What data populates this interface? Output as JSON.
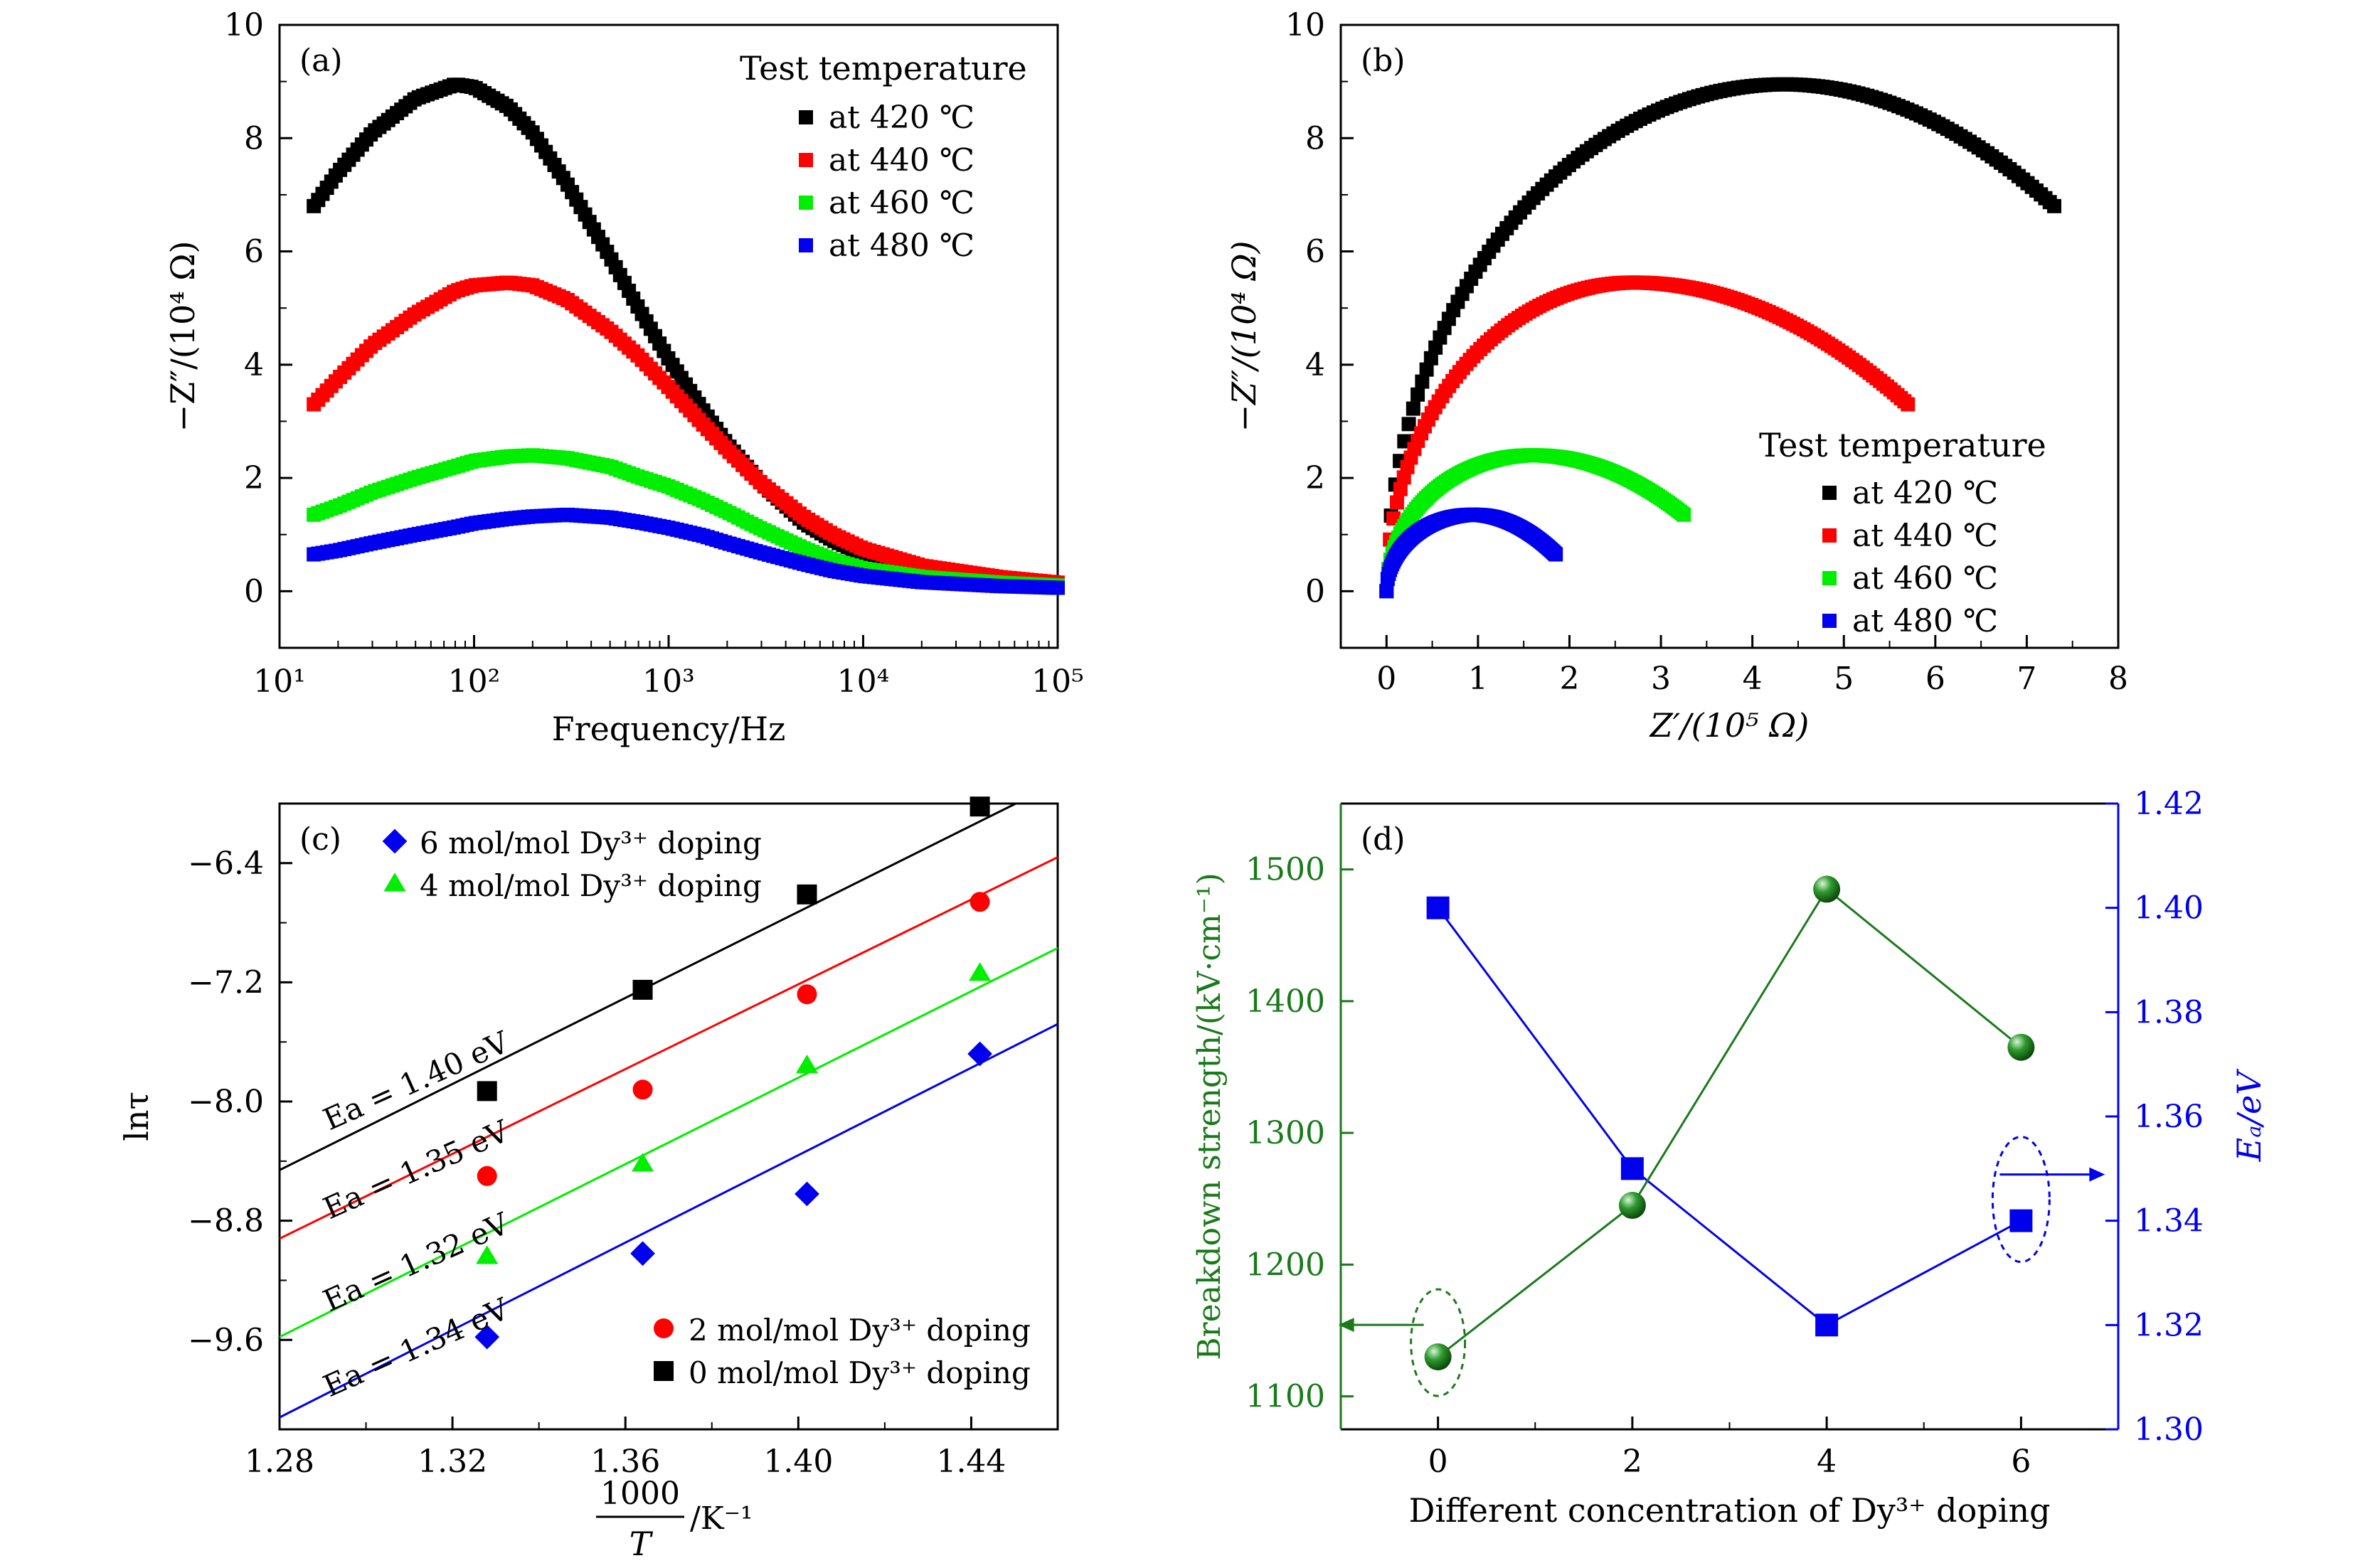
{
  "chart_data": [
    {
      "panel": "(a)",
      "type": "line",
      "xlabel": "Frequency/Hz",
      "ylabel": "−Z″/(10⁴ Ω)",
      "xscale": "log",
      "xlim": [
        10,
        100000
      ],
      "ylim": [
        -1,
        10
      ],
      "xticks": [
        10,
        100,
        1000,
        10000,
        100000
      ],
      "xtick_labels": [
        "10¹",
        "10²",
        "10³",
        "10⁴",
        "10⁵"
      ],
      "yticks": [
        0,
        2,
        4,
        6,
        8,
        10
      ],
      "legend_title": "Test temperature",
      "legend_position": "top-right",
      "series": [
        {
          "name": "at 420 ℃",
          "color": "#000000",
          "x": [
            15,
            20,
            30,
            50,
            80,
            100,
            150,
            200,
            300,
            500,
            700,
            1000,
            1500,
            2000,
            3000,
            5000,
            7000,
            10000,
            20000,
            50000,
            100000
          ],
          "y": [
            6.8,
            7.4,
            8.1,
            8.7,
            8.95,
            8.9,
            8.55,
            8.1,
            7.2,
            5.9,
            5.0,
            4.1,
            3.2,
            2.6,
            1.9,
            1.2,
            0.9,
            0.65,
            0.4,
            0.22,
            0.15
          ]
        },
        {
          "name": "at 440 ℃",
          "color": "#ff0000",
          "x": [
            15,
            20,
            30,
            50,
            80,
            100,
            150,
            200,
            300,
            500,
            700,
            1000,
            1500,
            2000,
            3000,
            5000,
            7000,
            10000,
            20000,
            50000,
            100000
          ],
          "y": [
            3.3,
            3.75,
            4.35,
            4.9,
            5.3,
            5.4,
            5.45,
            5.4,
            5.15,
            4.6,
            4.15,
            3.6,
            2.95,
            2.5,
            1.9,
            1.3,
            1.0,
            0.75,
            0.45,
            0.25,
            0.15
          ]
        },
        {
          "name": "at 460 ℃",
          "color": "#00ee00",
          "x": [
            15,
            20,
            30,
            50,
            80,
            100,
            150,
            200,
            300,
            500,
            700,
            1000,
            1500,
            2000,
            3000,
            5000,
            7000,
            10000,
            20000,
            50000,
            100000
          ],
          "y": [
            1.35,
            1.5,
            1.75,
            2.0,
            2.2,
            2.3,
            2.38,
            2.4,
            2.35,
            2.2,
            2.02,
            1.85,
            1.6,
            1.4,
            1.1,
            0.75,
            0.55,
            0.4,
            0.25,
            0.15,
            0.1
          ]
        },
        {
          "name": "at 480 ℃",
          "color": "#0000ee",
          "x": [
            15,
            20,
            30,
            50,
            80,
            100,
            150,
            200,
            300,
            500,
            700,
            1000,
            1500,
            2000,
            3000,
            5000,
            7000,
            10000,
            20000,
            50000,
            100000
          ],
          "y": [
            0.65,
            0.72,
            0.85,
            1.0,
            1.13,
            1.2,
            1.28,
            1.32,
            1.35,
            1.3,
            1.22,
            1.12,
            0.98,
            0.85,
            0.68,
            0.48,
            0.36,
            0.27,
            0.16,
            0.09,
            0.06
          ]
        }
      ]
    },
    {
      "panel": "(b)",
      "type": "scatter",
      "xlabel": "Z′/(10⁵ Ω)",
      "ylabel": "−Z″/(10⁴ Ω)",
      "xlim": [
        -0.5,
        8
      ],
      "ylim": [
        -1,
        10
      ],
      "xticks": [
        0,
        1,
        2,
        3,
        4,
        5,
        6,
        7,
        8
      ],
      "yticks": [
        0,
        2,
        4,
        6,
        8,
        10
      ],
      "legend_title": "Test temperature",
      "legend_position": "bottom-right",
      "series": [
        {
          "name": "at 420 ℃",
          "color": "#000000",
          "x0": 0.0,
          "x1": 7.3,
          "peak_x": 4.35,
          "peak_y": 8.95,
          "end_y": 6.8
        },
        {
          "name": "at 440 ℃",
          "color": "#ff0000",
          "x0": 0.0,
          "x1": 5.7,
          "peak_x": 2.7,
          "peak_y": 5.45,
          "end_y": 3.3
        },
        {
          "name": "at 460 ℃",
          "color": "#00ee00",
          "x0": 0.0,
          "x1": 3.25,
          "peak_x": 1.6,
          "peak_y": 2.4,
          "end_y": 1.35
        },
        {
          "name": "at 480 ℃",
          "color": "#0000ee",
          "x0": 0.0,
          "x1": 1.85,
          "peak_x": 0.95,
          "peak_y": 1.35,
          "end_y": 0.65
        }
      ]
    },
    {
      "panel": "(c)",
      "type": "scatter",
      "xlabel_num": "1000",
      "xlabel_den": "T",
      "xlabel_unit": "/K⁻¹",
      "ylabel": "lnτ",
      "xlim": [
        1.28,
        1.46
      ],
      "ylim": [
        -10.2,
        -6.0
      ],
      "xticks": [
        1.28,
        1.32,
        1.36,
        1.4,
        1.44
      ],
      "xtick_labels": [
        "1.28",
        "1.32",
        "1.36",
        "1.40",
        "1.44"
      ],
      "yticks": [
        -9.6,
        -8.8,
        -8.0,
        -7.2,
        -6.4
      ],
      "ytick_labels": [
        "−9.6",
        "−8.8",
        "−8.0",
        "−7.2",
        "−6.4"
      ],
      "legend_top": [
        "6 mol/mol Dy³⁺ doping",
        "4 mol/mol Dy³⁺ doping"
      ],
      "legend_bottom": [
        "2 mol/mol Dy³⁺ doping",
        "0 mol/mol Dy³⁺ doping"
      ],
      "series": [
        {
          "name": "0 mol/mol Dy³⁺ doping",
          "color": "#000000",
          "marker": "square",
          "x": [
            1.328,
            1.364,
            1.402,
            1.442
          ],
          "y": [
            -7.93,
            -7.25,
            -6.61,
            -6.02
          ],
          "fit": {
            "x": [
              1.28,
              1.46
            ],
            "y": [
              -8.46,
              -5.86
            ]
          },
          "ea_label": "Ea = 1.40 eV"
        },
        {
          "name": "2 mol/mol Dy³⁺ doping",
          "color": "#ff0000",
          "marker": "circle",
          "x": [
            1.328,
            1.364,
            1.402,
            1.442
          ],
          "y": [
            -8.5,
            -7.92,
            -7.28,
            -6.66
          ],
          "fit": {
            "x": [
              1.28,
              1.46
            ],
            "y": [
              -8.92,
              -6.36
            ]
          },
          "ea_label": "Ea = 1.35 eV"
        },
        {
          "name": "4 mol/mol Dy³⁺ doping",
          "color": "#00ee00",
          "marker": "triangle",
          "x": [
            1.328,
            1.364,
            1.402,
            1.442
          ],
          "y": [
            -9.04,
            -8.42,
            -7.76,
            -7.14
          ],
          "fit": {
            "x": [
              1.28,
              1.46
            ],
            "y": [
              -9.58,
              -6.97
            ]
          },
          "ea_label": "Ea = 1.32 eV"
        },
        {
          "name": "6 mol/mol Dy³⁺ doping",
          "color": "#0000ee",
          "marker": "diamond",
          "x": [
            1.328,
            1.364,
            1.402,
            1.442
          ],
          "y": [
            -9.58,
            -9.02,
            -8.62,
            -7.68
          ],
          "fit": {
            "x": [
              1.28,
              1.46
            ],
            "y": [
              -10.12,
              -7.48
            ]
          },
          "ea_label": "Ea = 1.34 eV"
        }
      ]
    },
    {
      "panel": "(d)",
      "type": "line",
      "xlabel": "Different concentration of Dy³⁺ doping",
      "ylabel_left": "Breakdown strength/(kV·cm⁻¹)",
      "ylabel_right": "Eₐ/eV",
      "xlim": [
        -1,
        7
      ],
      "xticks": [
        0,
        2,
        4,
        6
      ],
      "ylim_left": [
        1075,
        1550
      ],
      "yticks_left": [
        1100,
        1200,
        1300,
        1400,
        1500
      ],
      "ylim_right": [
        1.3,
        1.42
      ],
      "yticks_right": [
        "1.30",
        "1.32",
        "1.34",
        "1.36",
        "1.38",
        "1.40",
        "1.42"
      ],
      "series": [
        {
          "name": "Breakdown strength",
          "axis": "left",
          "color": "#1a7a1a",
          "marker": "sphere",
          "x": [
            0,
            2,
            4,
            6
          ],
          "y": [
            1130,
            1245,
            1485,
            1365
          ]
        },
        {
          "name": "Ea",
          "axis": "right",
          "color": "#0000ee",
          "marker": "square",
          "x": [
            0,
            2,
            4,
            6
          ],
          "y": [
            1.4,
            1.35,
            1.32,
            1.34
          ]
        }
      ]
    }
  ]
}
